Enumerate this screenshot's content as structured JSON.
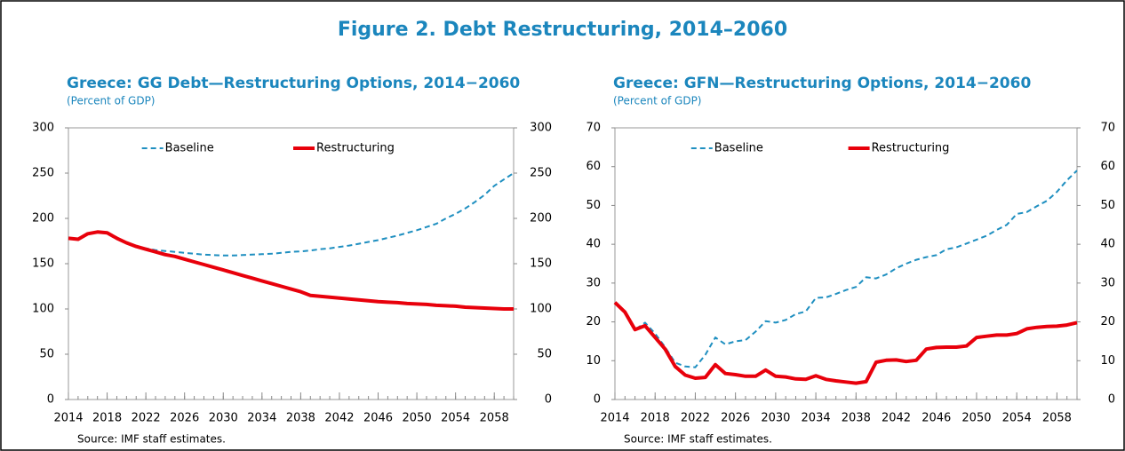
{
  "title": "Figure 2. Debt Restructuring, 2014–2060",
  "chart_data": [
    {
      "type": "line",
      "title": "Greece: GG Debt—Restructuring Options, 2014−2060",
      "subtitle": "(Percent of GDP)",
      "source": "Source: IMF staff estimates.",
      "x": [
        2014,
        2015,
        2016,
        2017,
        2018,
        2019,
        2020,
        2021,
        2022,
        2023,
        2024,
        2025,
        2026,
        2027,
        2028,
        2029,
        2030,
        2031,
        2032,
        2033,
        2034,
        2035,
        2036,
        2037,
        2038,
        2039,
        2040,
        2041,
        2042,
        2043,
        2044,
        2045,
        2046,
        2047,
        2048,
        2049,
        2050,
        2051,
        2052,
        2053,
        2054,
        2055,
        2056,
        2057,
        2058,
        2059,
        2060
      ],
      "xlim": [
        2014,
        2060
      ],
      "xticks": [
        2014,
        2018,
        2022,
        2026,
        2030,
        2034,
        2038,
        2042,
        2046,
        2050,
        2054,
        2058
      ],
      "ylim": [
        0,
        300
      ],
      "yticks": [
        0,
        50,
        100,
        150,
        200,
        250,
        300
      ],
      "y2lim": [
        0,
        300
      ],
      "y2ticks": [
        0,
        50,
        100,
        150,
        200,
        250,
        300
      ],
      "legend": "top",
      "series": [
        {
          "name": "Baseline",
          "color": "#1f8fc0",
          "line_style": "dashed",
          "values": [
            178,
            177,
            183,
            185,
            184,
            178,
            173,
            169,
            167,
            165,
            164,
            163,
            162,
            161,
            160,
            159.5,
            159,
            159,
            159.5,
            160,
            160.5,
            161,
            162,
            163,
            163.5,
            164.5,
            166,
            167,
            168.5,
            170,
            172,
            174,
            176,
            178.5,
            181,
            184,
            187,
            190.5,
            194,
            200,
            205,
            211,
            218,
            226,
            236,
            243,
            250
          ]
        },
        {
          "name": "Restructuring",
          "color": "#e8000b",
          "line_style": "solid",
          "values": [
            178,
            177,
            183,
            185,
            184,
            178,
            173,
            169,
            166,
            163,
            160,
            158,
            155,
            152,
            149,
            146,
            143,
            140,
            137,
            134,
            131,
            128,
            125,
            122,
            119,
            115,
            114,
            113,
            112,
            111,
            110,
            109,
            108,
            107.5,
            107,
            106,
            105.5,
            105,
            104,
            103.5,
            103,
            102,
            101.5,
            101,
            100.5,
            100,
            100
          ]
        }
      ]
    },
    {
      "type": "line",
      "title": "Greece: GFN—Restructuring Options, 2014−2060",
      "subtitle": "(Percent of GDP)",
      "source": "Source: IMF staff estimates.",
      "x": [
        2014,
        2015,
        2016,
        2017,
        2018,
        2019,
        2020,
        2021,
        2022,
        2023,
        2024,
        2025,
        2026,
        2027,
        2028,
        2029,
        2030,
        2031,
        2032,
        2033,
        2034,
        2035,
        2036,
        2037,
        2038,
        2039,
        2040,
        2041,
        2042,
        2043,
        2044,
        2045,
        2046,
        2047,
        2048,
        2049,
        2050,
        2051,
        2052,
        2053,
        2054,
        2055,
        2056,
        2057,
        2058,
        2059,
        2060
      ],
      "xlim": [
        2014,
        2060
      ],
      "xticks": [
        2014,
        2018,
        2022,
        2026,
        2030,
        2034,
        2038,
        2042,
        2046,
        2050,
        2054,
        2058
      ],
      "ylim": [
        0,
        70
      ],
      "yticks": [
        0,
        10,
        20,
        30,
        40,
        50,
        60,
        70
      ],
      "y2lim": [
        0,
        70
      ],
      "y2ticks": [
        0,
        10,
        20,
        30,
        40,
        50,
        60,
        70
      ],
      "legend": "top",
      "series": [
        {
          "name": "Baseline",
          "color": "#1f8fc0",
          "line_style": "dashed",
          "values": [
            25,
            22.5,
            18,
            19.8,
            17,
            13.5,
            9.5,
            8.5,
            8.3,
            11.5,
            16,
            14.2,
            15,
            15.3,
            17.5,
            20.2,
            19.8,
            20.5,
            22,
            22.7,
            26.2,
            26.3,
            27.2,
            28.2,
            29,
            31.5,
            31.2,
            32.2,
            33.8,
            35,
            36,
            36.7,
            37.2,
            38.7,
            39.2,
            40.2,
            41.2,
            42.2,
            43.7,
            45,
            47.8,
            48.3,
            49.8,
            51.2,
            53.5,
            56.5,
            59
          ]
        },
        {
          "name": "Restructuring",
          "color": "#e8000b",
          "line_style": "solid",
          "values": [
            25,
            22.5,
            18,
            19,
            16,
            13,
            8.5,
            6.3,
            5.5,
            5.7,
            9,
            6.7,
            6.4,
            6,
            6,
            7.6,
            6,
            5.8,
            5.3,
            5.2,
            6.1,
            5.2,
            4.8,
            4.5,
            4.2,
            4.6,
            9.6,
            10.1,
            10.2,
            9.8,
            10.1,
            13,
            13.4,
            13.5,
            13.5,
            13.8,
            16,
            16.3,
            16.6,
            16.6,
            17,
            18.2,
            18.6,
            18.8,
            18.9,
            19.2,
            19.8
          ]
        }
      ]
    }
  ]
}
